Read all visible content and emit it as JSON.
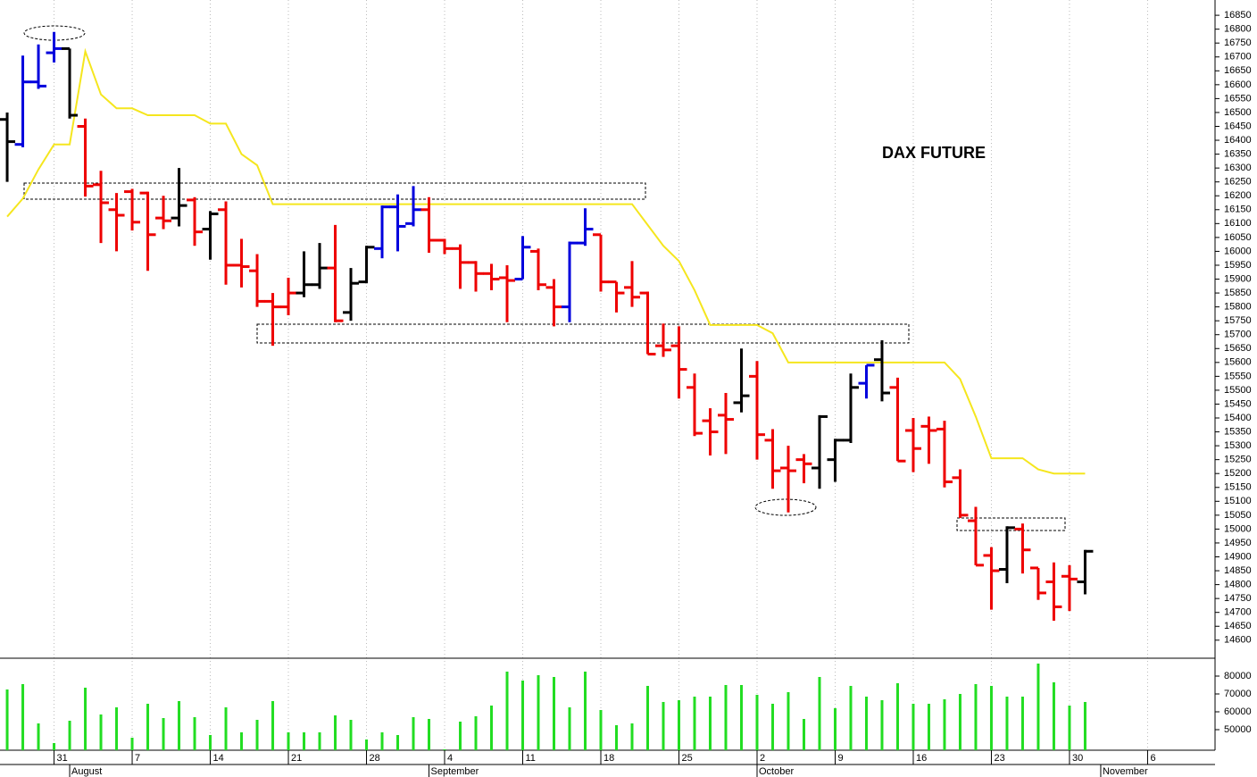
{
  "chart_data": [
    {
      "type": "ohlc",
      "title": "DAX FUTURE",
      "x": [
        0,
        1,
        2,
        3,
        4,
        5,
        6,
        7,
        8,
        9,
        10,
        11,
        12,
        13,
        14,
        15,
        16,
        17,
        18,
        19,
        20,
        21,
        22,
        23,
        24,
        25,
        26,
        27,
        28,
        29,
        30,
        31,
        32,
        33,
        34,
        35,
        36,
        37,
        38,
        39,
        40,
        41,
        42,
        43,
        44,
        45,
        46,
        47,
        48,
        49,
        50,
        51,
        52,
        53,
        54,
        55,
        56,
        57,
        58,
        59,
        60,
        61,
        62,
        63,
        64,
        65,
        66,
        67,
        68,
        69
      ],
      "open": [
        16475,
        16385,
        16610,
        16715,
        16730,
        16450,
        16240,
        16150,
        16215,
        16210,
        16120,
        16120,
        16185,
        16080,
        16150,
        15950,
        15930,
        15820,
        15800,
        15850,
        15880,
        15940,
        15780,
        15890,
        16010,
        16160,
        16100,
        16150,
        16040,
        16010,
        15960,
        15920,
        15905,
        15900,
        16000,
        15870,
        15800,
        16030,
        16060,
        15890,
        15870,
        15850,
        15660,
        15660,
        15510,
        15390,
        15410,
        15455,
        15550,
        15320,
        15220,
        15250,
        15220,
        15250,
        15320,
        15525,
        15610,
        15510,
        15355,
        15370,
        15360,
        15185,
        15030,
        14905,
        14855,
        15000,
        14860,
        14810,
        14830,
        14810
      ],
      "high": [
        16500,
        16705,
        16745,
        16790,
        16730,
        16478,
        16290,
        16210,
        16225,
        16215,
        16200,
        16300,
        16195,
        16145,
        16180,
        16045,
        15990,
        15850,
        15905,
        16000,
        16030,
        16095,
        15940,
        16020,
        16165,
        16205,
        16235,
        16195,
        16045,
        16025,
        15965,
        15955,
        15950,
        16055,
        16010,
        15900,
        16035,
        16155,
        16060,
        15890,
        15965,
        15855,
        15740,
        15730,
        15560,
        15435,
        15490,
        15650,
        15605,
        15360,
        15300,
        15270,
        15410,
        15325,
        15560,
        15590,
        15680,
        15545,
        15400,
        15405,
        15390,
        15215,
        15080,
        14935,
        15010,
        15020,
        14860,
        14880,
        14870,
        14925
      ],
      "low": [
        16250,
        16375,
        16585,
        16680,
        16478,
        16197,
        16030,
        16000,
        16075,
        15930,
        16080,
        16090,
        16020,
        15970,
        15880,
        15870,
        15800,
        15660,
        15770,
        15835,
        15865,
        15745,
        15750,
        15885,
        15975,
        16000,
        16090,
        15995,
        15990,
        15865,
        15855,
        15860,
        15745,
        15900,
        15860,
        15730,
        15745,
        16020,
        15855,
        15780,
        15800,
        15630,
        15620,
        15470,
        15335,
        15265,
        15270,
        15420,
        15250,
        15145,
        15060,
        15165,
        15145,
        15170,
        15310,
        15470,
        15460,
        15245,
        15205,
        15235,
        15150,
        15040,
        14870,
        14710,
        14805,
        14840,
        14745,
        14670,
        14705,
        14765
      ],
      "close": [
        16395,
        16610,
        16595,
        16730,
        16490,
        16235,
        16175,
        16130,
        16105,
        16060,
        16110,
        16165,
        16070,
        16135,
        15950,
        15945,
        15820,
        15800,
        15850,
        15880,
        15940,
        15750,
        15885,
        16015,
        16160,
        16090,
        16150,
        16040,
        16010,
        15960,
        15920,
        15900,
        15895,
        16015,
        15880,
        15800,
        16030,
        16080,
        15890,
        15850,
        15835,
        15630,
        15645,
        15575,
        15345,
        15350,
        15395,
        15480,
        15340,
        15210,
        15210,
        15235,
        15405,
        15320,
        15510,
        15590,
        15490,
        15245,
        15290,
        15355,
        15170,
        15050,
        14870,
        14850,
        15005,
        14925,
        14770,
        14720,
        14820,
        14920
      ],
      "bar_colors": [
        "#000000",
        "#0000dd",
        "#0000dd",
        "#0000dd",
        "#000000",
        "#ee0000",
        "#ee0000",
        "#ee0000",
        "#ee0000",
        "#ee0000",
        "#ee0000",
        "#000000",
        "#ee0000",
        "#000000",
        "#ee0000",
        "#ee0000",
        "#ee0000",
        "#ee0000",
        "#ee0000",
        "#000000",
        "#000000",
        "#ee0000",
        "#000000",
        "#000000",
        "#0000dd",
        "#0000dd",
        "#0000dd",
        "#ee0000",
        "#ee0000",
        "#ee0000",
        "#ee0000",
        "#ee0000",
        "#ee0000",
        "#0000dd",
        "#ee0000",
        "#ee0000",
        "#0000dd",
        "#0000dd",
        "#ee0000",
        "#ee0000",
        "#ee0000",
        "#ee0000",
        "#ee0000",
        "#ee0000",
        "#ee0000",
        "#ee0000",
        "#ee0000",
        "#000000",
        "#ee0000",
        "#ee0000",
        "#ee0000",
        "#ee0000",
        "#000000",
        "#000000",
        "#000000",
        "#0000dd",
        "#000000",
        "#ee0000",
        "#ee0000",
        "#ee0000",
        "#ee0000",
        "#ee0000",
        "#ee0000",
        "#ee0000",
        "#000000",
        "#ee0000",
        "#ee0000",
        "#ee0000",
        "#ee0000",
        "#000000"
      ],
      "line": {
        "color": "#f5e61e",
        "values": [
          16125,
          16190,
          16295,
          16385,
          16385,
          16720,
          16565,
          16515,
          16515,
          16490,
          16490,
          16490,
          16490,
          16460,
          16460,
          16350,
          16310,
          16170,
          16170,
          16170,
          16170,
          16170,
          16170,
          16170,
          16170,
          16170,
          16170,
          16170,
          16170,
          16170,
          16170,
          16170,
          16170,
          16170,
          16170,
          16170,
          16170,
          16170,
          16170,
          16170,
          16170,
          16095,
          16020,
          15965,
          15860,
          15735,
          15735,
          15735,
          15735,
          15705,
          15600,
          15600,
          15600,
          15600,
          15600,
          15600,
          15600,
          15600,
          15600,
          15600,
          15600,
          15540,
          15405,
          15255,
          15255,
          15255,
          15215,
          15200,
          15200,
          15200
        ]
      },
      "xlim": [
        -0.46,
        77.26
      ],
      "xticks": [
        {
          "value": 3,
          "label": "31"
        },
        {
          "value": 8,
          "label": "7"
        },
        {
          "value": 13,
          "label": "14"
        },
        {
          "value": 18,
          "label": "21"
        },
        {
          "value": 23,
          "label": "28"
        },
        {
          "value": 28,
          "label": "4"
        },
        {
          "value": 33,
          "label": "11"
        },
        {
          "value": 38,
          "label": "18"
        },
        {
          "value": 43,
          "label": "25"
        },
        {
          "value": 48,
          "label": "2"
        },
        {
          "value": 53,
          "label": "9"
        },
        {
          "value": 58,
          "label": "16"
        },
        {
          "value": 63,
          "label": "23"
        },
        {
          "value": 68,
          "label": "30"
        },
        {
          "value": 73,
          "label": "6"
        }
      ],
      "month_ticks": [
        {
          "value": 4,
          "label": "August"
        },
        {
          "value": 27,
          "label": "September"
        },
        {
          "value": 48,
          "label": "October"
        },
        {
          "value": 70,
          "label": "November"
        }
      ],
      "ylim": [
        14535,
        16905
      ],
      "yticks": [
        14600,
        14650,
        14700,
        14750,
        14800,
        14850,
        14900,
        14950,
        15000,
        15050,
        15100,
        15150,
        15200,
        15250,
        15300,
        15350,
        15400,
        15450,
        15500,
        15550,
        15600,
        15650,
        15700,
        15750,
        15800,
        15850,
        15900,
        15950,
        16000,
        16050,
        16100,
        16150,
        16200,
        16250,
        16300,
        16350,
        16400,
        16450,
        16500,
        16550,
        16600,
        16650,
        16700,
        16750,
        16800,
        16850
      ],
      "grid": true
    },
    {
      "type": "bar",
      "color": "#22dd22",
      "values": [
        72500,
        75500,
        53500,
        42500,
        55000,
        73500,
        58500,
        62500,
        45500,
        64500,
        56500,
        66000,
        57000,
        47000,
        62500,
        48500,
        55500,
        66000,
        48500,
        48500,
        48500,
        58000,
        55500,
        44500,
        48500,
        47000,
        57000,
        56000,
        39000,
        54500,
        57500,
        63500,
        82500,
        77500,
        80500,
        79500,
        62500,
        82500,
        61000,
        52500,
        53500,
        74500,
        65500,
        66500,
        68500,
        68500,
        75000,
        75000,
        69500,
        64500,
        71000,
        56000,
        79500,
        62000,
        74500,
        68500,
        66500,
        76000,
        64500,
        64500,
        67000,
        70000,
        75500,
        74500,
        68500,
        68500,
        87000,
        76500,
        63500,
        65500
      ],
      "ylim": [
        38500,
        89500
      ],
      "yticks": [
        50000,
        60000,
        70000,
        80000
      ]
    }
  ]
}
